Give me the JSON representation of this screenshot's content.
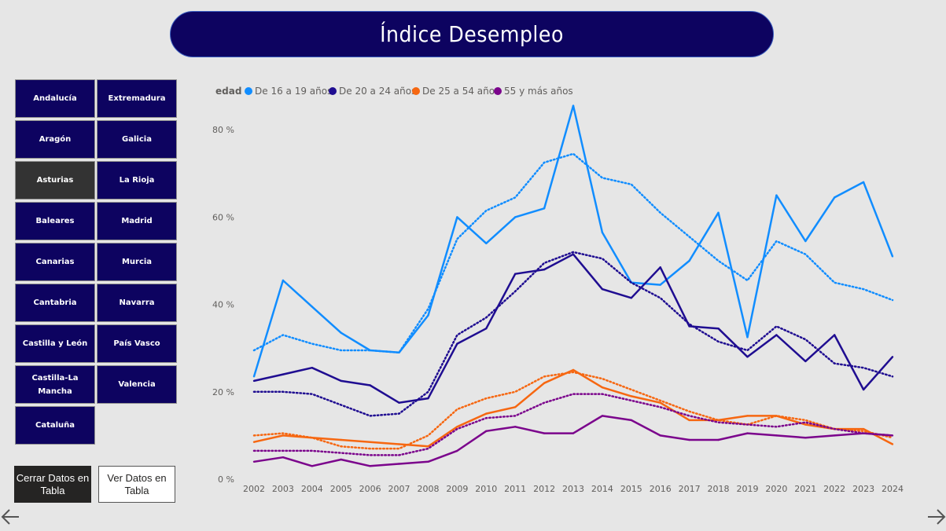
{
  "title": "Índice Desempleo",
  "regions": [
    {
      "label": "Andalucía",
      "selected": false
    },
    {
      "label": "Extremadura",
      "selected": false
    },
    {
      "label": "Aragón",
      "selected": false
    },
    {
      "label": "Galicia",
      "selected": false
    },
    {
      "label": "Asturias",
      "selected": true
    },
    {
      "label": "La Rioja",
      "selected": false
    },
    {
      "label": "Baleares",
      "selected": false
    },
    {
      "label": "Madrid",
      "selected": false
    },
    {
      "label": "Canarias",
      "selected": false
    },
    {
      "label": "Murcia",
      "selected": false
    },
    {
      "label": "Cantabria",
      "selected": false
    },
    {
      "label": "Navarra",
      "selected": false
    },
    {
      "label": "Castilla y León",
      "selected": false
    },
    {
      "label": "País Vasco",
      "selected": false
    },
    {
      "label": "Castilla-La Mancha",
      "selected": false
    },
    {
      "label": "Valencia",
      "selected": false
    },
    {
      "label": "Cataluña",
      "selected": false
    }
  ],
  "buttons": {
    "close_table": "Cerrar Datos en Tabla",
    "view_table": "Ver Datos en Tabla"
  },
  "icons": {
    "prev": "arrow-left-icon",
    "next": "arrow-right-icon"
  },
  "chart_data": {
    "type": "line",
    "legend_title": "edad",
    "legend_position": "top-left",
    "grid": false,
    "x": [
      "2002",
      "2003",
      "2004",
      "2005",
      "2006",
      "2007",
      "2008",
      "2009",
      "2010",
      "2011",
      "2012",
      "2013",
      "2014",
      "2015",
      "2016",
      "2017",
      "2018",
      "2019",
      "2020",
      "2021",
      "2022",
      "2023",
      "2024"
    ],
    "y_ticks": [
      "0 %",
      "20 %",
      "40 %",
      "60 %",
      "80 %"
    ],
    "ylim": [
      0,
      85
    ],
    "series": [
      {
        "name": "De 16 a 19 años",
        "color": "#118dff",
        "values": [
          23.5,
          45.5,
          39.5,
          33.5,
          29.5,
          29,
          37.5,
          60,
          54,
          60,
          62,
          85.5,
          56.5,
          45,
          44.5,
          50,
          61,
          32.5,
          65,
          54.5,
          64.5,
          68,
          51
        ],
        "trend": [
          29.5,
          33,
          31,
          29.5,
          29.5,
          29,
          39,
          55,
          61.5,
          64.5,
          72.5,
          74.5,
          69,
          67.5,
          61,
          55.5,
          50,
          45.5,
          54.5,
          51.5,
          45,
          43.5,
          41
        ]
      },
      {
        "name": "De 20 a 24 años",
        "color": "#1f0d91",
        "values": [
          22.5,
          24,
          25.5,
          22.5,
          21.5,
          17.5,
          18.5,
          31,
          34.5,
          47,
          48,
          51.5,
          43.5,
          41.5,
          48.5,
          35,
          34.5,
          28,
          33,
          27,
          33,
          20.5,
          28
        ],
        "trend": [
          20,
          20,
          19.5,
          17,
          14.5,
          15,
          20,
          33,
          37,
          43,
          49.5,
          52,
          50.5,
          45,
          41.5,
          35.5,
          31.5,
          29.5,
          35,
          32,
          26.5,
          25.5,
          23.5
        ]
      },
      {
        "name": "De 25 a 54 años",
        "color": "#f66711",
        "values": [
          8.5,
          10,
          9.5,
          9,
          8.5,
          8,
          7.5,
          12,
          15,
          16.5,
          22,
          25,
          21,
          19,
          17.5,
          13.5,
          13.5,
          14.5,
          14.5,
          12.5,
          11.5,
          11.5,
          8
        ],
        "trend": [
          10,
          10.5,
          9.5,
          7.5,
          7,
          7,
          10,
          16,
          18.5,
          20,
          23.5,
          24.5,
          23,
          20.5,
          18,
          15.5,
          13.5,
          12.5,
          14.5,
          13.5,
          11.5,
          11,
          9.5
        ]
      },
      {
        "name": "55 y más años",
        "color": "#7b058c",
        "values": [
          4,
          5,
          3,
          4.5,
          3,
          3.5,
          4,
          6.5,
          11,
          12,
          10.5,
          10.5,
          14.5,
          13.5,
          10,
          9,
          9,
          10.5,
          10,
          9.5,
          10,
          10.5,
          10
        ],
        "trend": [
          6.5,
          6.5,
          6.5,
          6,
          5.5,
          5.5,
          7,
          11.5,
          14,
          14.5,
          17.5,
          19.5,
          19.5,
          18,
          16.5,
          14.5,
          13,
          12.5,
          12,
          13,
          11.5,
          10.5,
          10
        ]
      }
    ]
  }
}
